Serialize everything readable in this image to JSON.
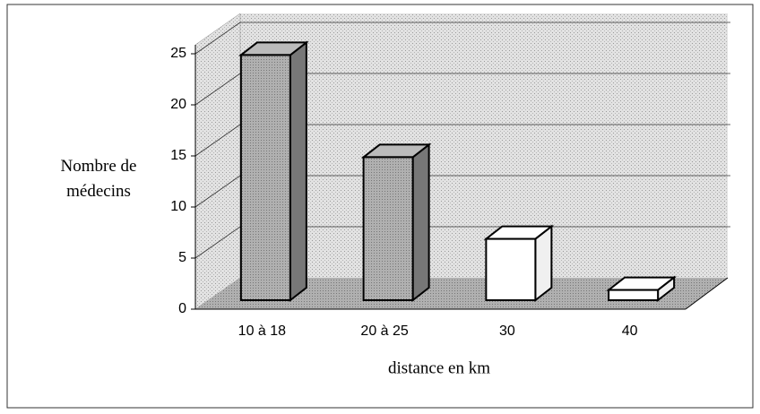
{
  "chart_data": {
    "type": "bar3d",
    "categories": [
      "10 à 18",
      "20 à 25",
      "30",
      "40"
    ],
    "values": [
      24,
      14,
      6,
      1
    ],
    "colors": [
      "#a8a8a8",
      "#a8a8a8",
      "#ffffff",
      "#ffffff"
    ],
    "ylabel": "Nombre de médecins",
    "xlabel": "distance en km",
    "ylim": [
      0,
      25
    ],
    "yticks": [
      0,
      5,
      10,
      15,
      20,
      25
    ],
    "grid": true
  }
}
